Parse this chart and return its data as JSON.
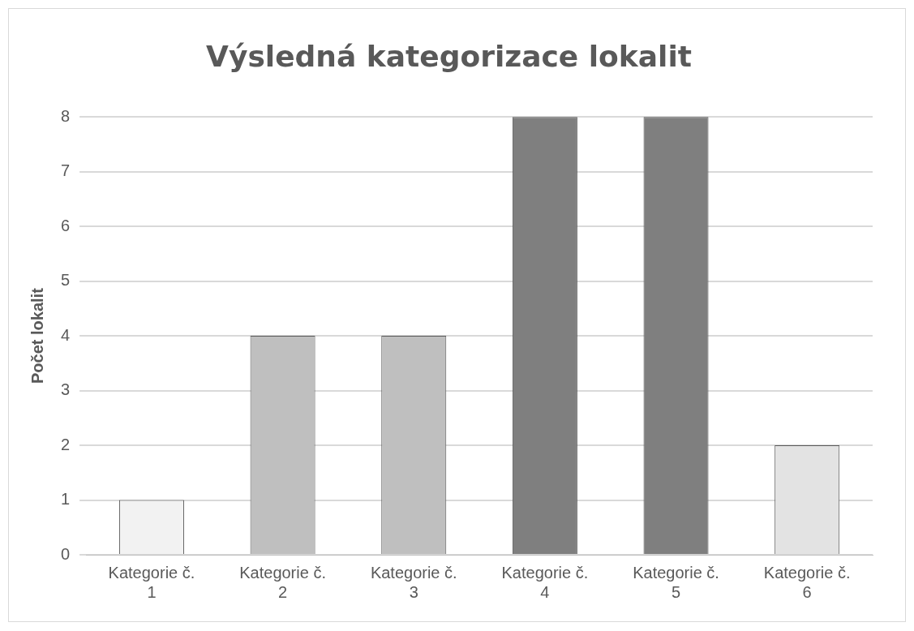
{
  "chart_data": {
    "type": "bar",
    "title": "Výsledná kategorizace lokalit",
    "ylabel": "Počet lokalit",
    "categories": [
      "Kategorie č. 1",
      "Kategorie č. 2",
      "Kategorie č. 3",
      "Kategorie č. 4",
      "Kategorie č. 5",
      "Kategorie č. 6"
    ],
    "values": [
      1,
      4,
      4,
      8,
      8,
      2
    ],
    "colors": [
      "#f2f2f2",
      "#bfbfbf",
      "#bfbfbf",
      "#7f7f7f",
      "#7f7f7f",
      "#e3e3e3"
    ],
    "ylim": [
      0,
      8
    ],
    "yticks": [
      0,
      1,
      2,
      3,
      4,
      5,
      6,
      7,
      8
    ],
    "grid": "y",
    "legend": false
  }
}
